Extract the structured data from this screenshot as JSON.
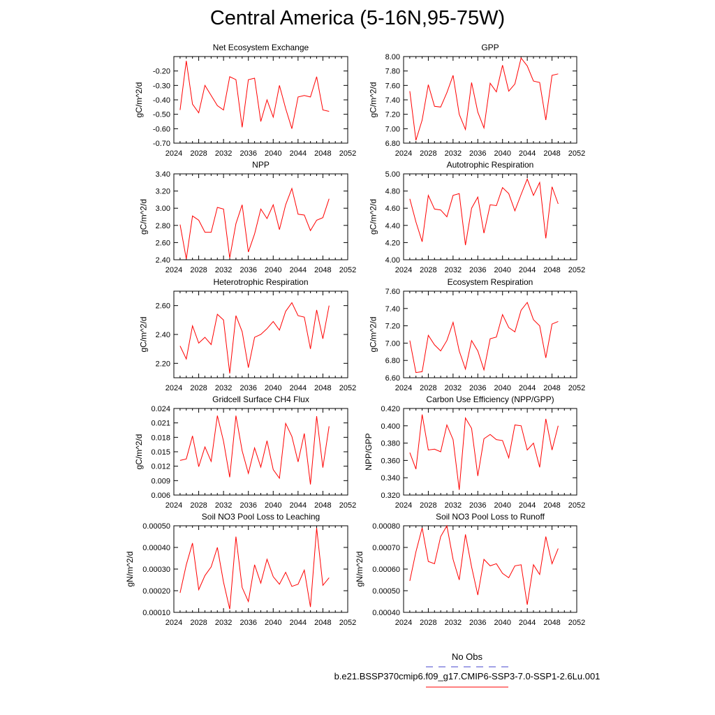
{
  "title": "Central America (5-16N,95-75W)",
  "colors": {
    "series": "#ff0000",
    "obs": "#4444cc",
    "axis": "#000000"
  },
  "legend": {
    "obs_label": "No Obs",
    "model_label": "b.e21.BSSP370cmip6.f09_g17.CMIP6-SSP3-7.0-SSP1-2.6Lu.001"
  },
  "chart_data": [
    {
      "type": "line",
      "title": "Net Ecosystem Exchange",
      "ylabel": "gC/m^2/d",
      "xlim": [
        2024,
        2052
      ],
      "ylim": [
        -0.7,
        -0.1
      ],
      "xticks": [
        "2024",
        "2028",
        "2032",
        "2036",
        "2040",
        "2044",
        "2048",
        "2052"
      ],
      "yticks": [
        "-0.70",
        "-0.60",
        "-0.50",
        "-0.40",
        "-0.30",
        "-0.20"
      ],
      "x": [
        2025,
        2026,
        2027,
        2028,
        2029,
        2030,
        2031,
        2032,
        2033,
        2034,
        2035,
        2036,
        2037,
        2038,
        2039,
        2040,
        2041,
        2042,
        2043,
        2044,
        2045,
        2046,
        2047,
        2048,
        2049
      ],
      "values": [
        -0.47,
        -0.13,
        -0.43,
        -0.49,
        -0.3,
        -0.37,
        -0.44,
        -0.47,
        -0.24,
        -0.26,
        -0.59,
        -0.26,
        -0.25,
        -0.55,
        -0.4,
        -0.52,
        -0.3,
        -0.46,
        -0.6,
        -0.38,
        -0.37,
        -0.38,
        -0.24,
        -0.47,
        -0.48
      ]
    },
    {
      "type": "line",
      "title": "GPP",
      "ylabel": "gC/m^2/d",
      "xlim": [
        2024,
        2052
      ],
      "ylim": [
        6.8,
        8.0
      ],
      "xticks": [
        "2024",
        "2028",
        "2032",
        "2036",
        "2040",
        "2044",
        "2048",
        "2052"
      ],
      "yticks": [
        "6.80",
        "7.00",
        "7.20",
        "7.40",
        "7.60",
        "7.80",
        "8.00"
      ],
      "x": [
        2025,
        2026,
        2027,
        2028,
        2029,
        2030,
        2031,
        2032,
        2033,
        2034,
        2035,
        2036,
        2037,
        2038,
        2039,
        2040,
        2041,
        2042,
        2043,
        2044,
        2045,
        2046,
        2047,
        2048,
        2049
      ],
      "values": [
        7.52,
        6.84,
        7.12,
        7.61,
        7.31,
        7.3,
        7.5,
        7.74,
        7.2,
        6.99,
        7.64,
        7.23,
        7.01,
        7.63,
        7.51,
        7.88,
        7.52,
        7.62,
        7.98,
        7.87,
        7.66,
        7.64,
        7.12,
        7.74,
        7.76
      ]
    },
    {
      "type": "line",
      "title": "NPP",
      "ylabel": "gC/m^2/d",
      "xlim": [
        2024,
        2052
      ],
      "ylim": [
        2.4,
        3.4
      ],
      "xticks": [
        "2024",
        "2028",
        "2032",
        "2036",
        "2040",
        "2044",
        "2048",
        "2052"
      ],
      "yticks": [
        "2.40",
        "2.60",
        "2.80",
        "3.00",
        "3.20",
        "3.40"
      ],
      "x": [
        2025,
        2026,
        2027,
        2028,
        2029,
        2030,
        2031,
        2032,
        2033,
        2034,
        2035,
        2036,
        2037,
        2038,
        2039,
        2040,
        2041,
        2042,
        2043,
        2044,
        2045,
        2046,
        2047,
        2048,
        2049
      ],
      "values": [
        2.81,
        2.41,
        2.91,
        2.86,
        2.72,
        2.72,
        3.01,
        2.99,
        2.42,
        2.82,
        3.04,
        2.49,
        2.7,
        2.99,
        2.88,
        3.04,
        2.75,
        3.04,
        3.23,
        2.93,
        2.92,
        2.74,
        2.86,
        2.89,
        3.11
      ]
    },
    {
      "type": "line",
      "title": "Autotrophic Respiration",
      "ylabel": "gC/m^2/d",
      "xlim": [
        2024,
        2052
      ],
      "ylim": [
        4.0,
        5.0
      ],
      "xticks": [
        "2024",
        "2028",
        "2032",
        "2036",
        "2040",
        "2044",
        "2048",
        "2052"
      ],
      "yticks": [
        "4.00",
        "4.20",
        "4.40",
        "4.60",
        "4.80",
        "5.00"
      ],
      "x": [
        2025,
        2026,
        2027,
        2028,
        2029,
        2030,
        2031,
        2032,
        2033,
        2034,
        2035,
        2036,
        2037,
        2038,
        2039,
        2040,
        2041,
        2042,
        2043,
        2044,
        2045,
        2046,
        2047,
        2048,
        2049
      ],
      "values": [
        4.71,
        4.44,
        4.21,
        4.75,
        4.59,
        4.58,
        4.5,
        4.75,
        4.77,
        4.17,
        4.6,
        4.73,
        4.31,
        4.64,
        4.63,
        4.84,
        4.77,
        4.57,
        4.76,
        4.94,
        4.75,
        4.9,
        4.25,
        4.85,
        4.65
      ]
    },
    {
      "type": "line",
      "title": "Heterotrophic Respiration",
      "ylabel": "gC/m^2/d",
      "xlim": [
        2024,
        2052
      ],
      "ylim": [
        2.1,
        2.7
      ],
      "xticks": [
        "2024",
        "2028",
        "2032",
        "2036",
        "2040",
        "2044",
        "2048",
        "2052"
      ],
      "yticks": [
        "2.20",
        "2.40",
        "2.60"
      ],
      "x": [
        2025,
        2026,
        2027,
        2028,
        2029,
        2030,
        2031,
        2032,
        2033,
        2034,
        2035,
        2036,
        2037,
        2038,
        2039,
        2040,
        2041,
        2042,
        2043,
        2044,
        2045,
        2046,
        2047,
        2048,
        2049
      ],
      "values": [
        2.32,
        2.23,
        2.46,
        2.34,
        2.38,
        2.33,
        2.54,
        2.5,
        2.13,
        2.53,
        2.42,
        2.17,
        2.38,
        2.4,
        2.44,
        2.49,
        2.43,
        2.56,
        2.62,
        2.53,
        2.52,
        2.3,
        2.57,
        2.37,
        2.6
      ]
    },
    {
      "type": "line",
      "title": "Ecosystem Respiration",
      "ylabel": "gC/m^2/d",
      "xlim": [
        2024,
        2052
      ],
      "ylim": [
        6.6,
        7.6
      ],
      "xticks": [
        "2024",
        "2028",
        "2032",
        "2036",
        "2040",
        "2044",
        "2048",
        "2052"
      ],
      "yticks": [
        "6.60",
        "6.80",
        "7.00",
        "7.20",
        "7.40",
        "7.60"
      ],
      "x": [
        2025,
        2026,
        2027,
        2028,
        2029,
        2030,
        2031,
        2032,
        2033,
        2034,
        2035,
        2036,
        2037,
        2038,
        2039,
        2040,
        2041,
        2042,
        2043,
        2044,
        2045,
        2046,
        2047,
        2048,
        2049
      ],
      "values": [
        7.03,
        6.66,
        6.67,
        7.09,
        6.98,
        6.91,
        7.03,
        7.24,
        6.91,
        6.7,
        7.03,
        6.91,
        6.69,
        7.05,
        7.07,
        7.33,
        7.18,
        7.13,
        7.38,
        7.47,
        7.27,
        7.2,
        6.83,
        7.22,
        7.25
      ]
    },
    {
      "type": "line",
      "title": "Gridcell Surface CH4 Flux",
      "ylabel": "gC/m^2/d",
      "xlim": [
        2024,
        2052
      ],
      "ylim": [
        0.006,
        0.024
      ],
      "xticks": [
        "2024",
        "2028",
        "2032",
        "2036",
        "2040",
        "2044",
        "2048",
        "2052"
      ],
      "yticks": [
        "0.006",
        "0.009",
        "0.012",
        "0.015",
        "0.018",
        "0.021",
        "0.024"
      ],
      "x": [
        2025,
        2026,
        2027,
        2028,
        2029,
        2030,
        2031,
        2032,
        2033,
        2034,
        2035,
        2036,
        2037,
        2038,
        2039,
        2040,
        2041,
        2042,
        2043,
        2044,
        2045,
        2046,
        2047,
        2048,
        2049
      ],
      "values": [
        0.0132,
        0.0135,
        0.0183,
        0.0119,
        0.016,
        0.013,
        0.0225,
        0.0172,
        0.0097,
        0.0225,
        0.0152,
        0.0105,
        0.0158,
        0.0118,
        0.0173,
        0.0113,
        0.0095,
        0.0209,
        0.0182,
        0.0129,
        0.0188,
        0.0082,
        0.0224,
        0.0117,
        0.0203
      ]
    },
    {
      "type": "line",
      "title": "Carbon Use Efficiency (NPP/GPP)",
      "ylabel": "NPP/GPP",
      "xlim": [
        2024,
        2052
      ],
      "ylim": [
        0.32,
        0.42
      ],
      "xticks": [
        "2024",
        "2028",
        "2032",
        "2036",
        "2040",
        "2044",
        "2048",
        "2052"
      ],
      "yticks": [
        "0.320",
        "0.340",
        "0.360",
        "0.380",
        "0.400",
        "0.420"
      ],
      "x": [
        2025,
        2026,
        2027,
        2028,
        2029,
        2030,
        2031,
        2032,
        2033,
        2034,
        2035,
        2036,
        2037,
        2038,
        2039,
        2040,
        2041,
        2042,
        2043,
        2044,
        2045,
        2046,
        2047,
        2048,
        2049
      ],
      "values": [
        0.369,
        0.35,
        0.413,
        0.372,
        0.373,
        0.37,
        0.401,
        0.384,
        0.326,
        0.409,
        0.397,
        0.342,
        0.385,
        0.39,
        0.384,
        0.383,
        0.363,
        0.401,
        0.4,
        0.372,
        0.38,
        0.352,
        0.408,
        0.372,
        0.4
      ]
    },
    {
      "type": "line",
      "title": "Soil NO3 Pool Loss to Leaching",
      "ylabel": "gN/m^2/d",
      "xlim": [
        2024,
        2052
      ],
      "ylim": [
        0.0001,
        0.0005
      ],
      "xticks": [
        "2024",
        "2028",
        "2032",
        "2036",
        "2040",
        "2044",
        "2048",
        "2052"
      ],
      "yticks": [
        "0.00010",
        "0.00020",
        "0.00030",
        "0.00040",
        "0.00050"
      ],
      "x": [
        2025,
        2026,
        2027,
        2028,
        2029,
        2030,
        2031,
        2032,
        2033,
        2034,
        2035,
        2036,
        2037,
        2038,
        2039,
        2040,
        2041,
        2042,
        2043,
        2044,
        2045,
        2046,
        2047,
        2048,
        2049
      ],
      "values": [
        0.00019,
        0.00032,
        0.00042,
        0.000205,
        0.00027,
        0.00031,
        0.0004,
        0.00024,
        0.000115,
        0.00045,
        0.000215,
        0.00015,
        0.00032,
        0.000235,
        0.000345,
        0.000265,
        0.00023,
        0.000285,
        0.00022,
        0.00023,
        0.000295,
        0.000125,
        0.00049,
        0.000225,
        0.00026
      ]
    },
    {
      "type": "line",
      "title": "Soil NO3 Pool Loss to Runoff",
      "ylabel": "gN/m^2/d",
      "xlim": [
        2024,
        2052
      ],
      "ylim": [
        0.0004,
        0.0008
      ],
      "xticks": [
        "2024",
        "2028",
        "2032",
        "2036",
        "2040",
        "2044",
        "2048",
        "2052"
      ],
      "yticks": [
        "0.00040",
        "0.00050",
        "0.00060",
        "0.00070",
        "0.00080"
      ],
      "x": [
        2025,
        2026,
        2027,
        2028,
        2029,
        2030,
        2031,
        2032,
        2033,
        2034,
        2035,
        2036,
        2037,
        2038,
        2039,
        2040,
        2041,
        2042,
        2043,
        2044,
        2045,
        2046,
        2047,
        2048,
        2049
      ],
      "values": [
        0.000545,
        0.00068,
        0.00079,
        0.000635,
        0.000625,
        0.00075,
        0.0008,
        0.000645,
        0.00055,
        0.00076,
        0.00061,
        0.00048,
        0.000645,
        0.000615,
        0.000625,
        0.00058,
        0.00056,
        0.000615,
        0.00062,
        0.000435,
        0.00062,
        0.000575,
        0.00075,
        0.000625,
        0.000695
      ]
    }
  ]
}
